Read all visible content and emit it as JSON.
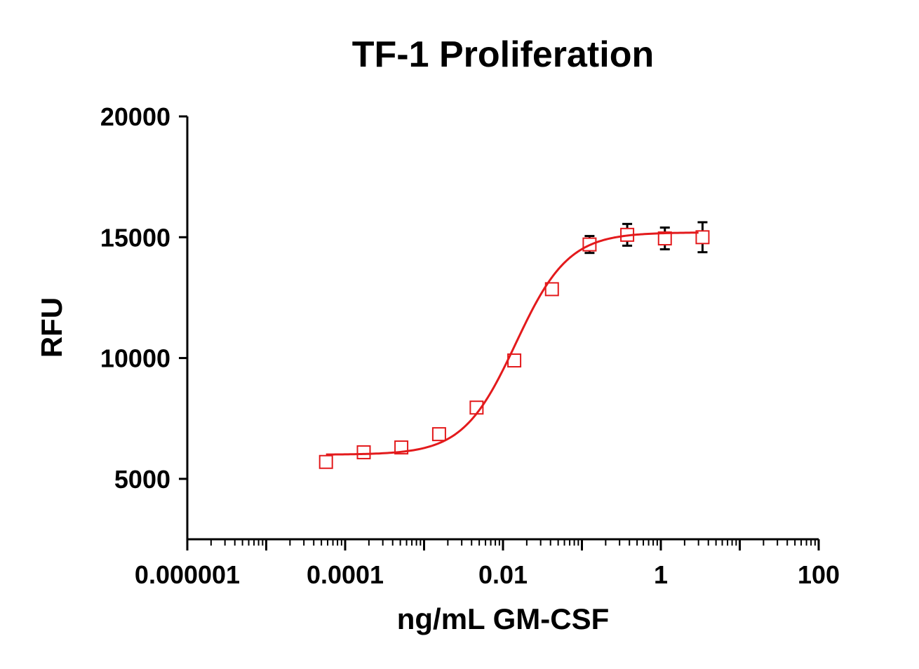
{
  "colors": {
    "fit_line": "#e31a1c",
    "marker": "#e31a1c",
    "error_bar": "#000000",
    "axis": "#000000"
  },
  "chart_data": {
    "type": "scatter",
    "title": "TF-1 Proliferation",
    "xlabel": "ng/mL GM-CSF",
    "ylabel": "RFU",
    "x_scale": "log",
    "xlim": [
      1e-06,
      100
    ],
    "ylim": [
      2500,
      20000
    ],
    "x_ticks": [
      {
        "value": 1e-06,
        "label": "0.000001"
      },
      {
        "value": 0.0001,
        "label": "0.0001"
      },
      {
        "value": 0.01,
        "label": "0.01"
      },
      {
        "value": 1,
        "label": "1"
      },
      {
        "value": 100,
        "label": "100"
      }
    ],
    "y_ticks": [
      {
        "value": 5000,
        "label": "5000"
      },
      {
        "value": 10000,
        "label": "10000"
      },
      {
        "value": 15000,
        "label": "15000"
      },
      {
        "value": 20000,
        "label": "20000"
      }
    ],
    "grid": false,
    "legend": "none",
    "series": [
      {
        "marker": "open-square",
        "points": [
          {
            "x": 5.72e-05,
            "y": 5700,
            "err": 0
          },
          {
            "x": 0.000172,
            "y": 6100,
            "err": 0
          },
          {
            "x": 0.000515,
            "y": 6300,
            "err": 0
          },
          {
            "x": 0.00155,
            "y": 6850,
            "err": 0
          },
          {
            "x": 0.00463,
            "y": 7950,
            "err": 0
          },
          {
            "x": 0.0139,
            "y": 9900,
            "err": 0
          },
          {
            "x": 0.0417,
            "y": 12850,
            "err": 0
          },
          {
            "x": 0.125,
            "y": 14700,
            "err": 350
          },
          {
            "x": 0.375,
            "y": 15100,
            "err": 450
          },
          {
            "x": 1.125,
            "y": 14950,
            "err": 450
          },
          {
            "x": 3.375,
            "y": 15000,
            "err": 620
          }
        ]
      }
    ],
    "fit": {
      "model": "four-parameter logistic",
      "bottom": 6000,
      "top": 15200,
      "ec50": 0.0145,
      "hill": 1.3,
      "x_range": [
        5.72e-05,
        3.0
      ]
    }
  }
}
